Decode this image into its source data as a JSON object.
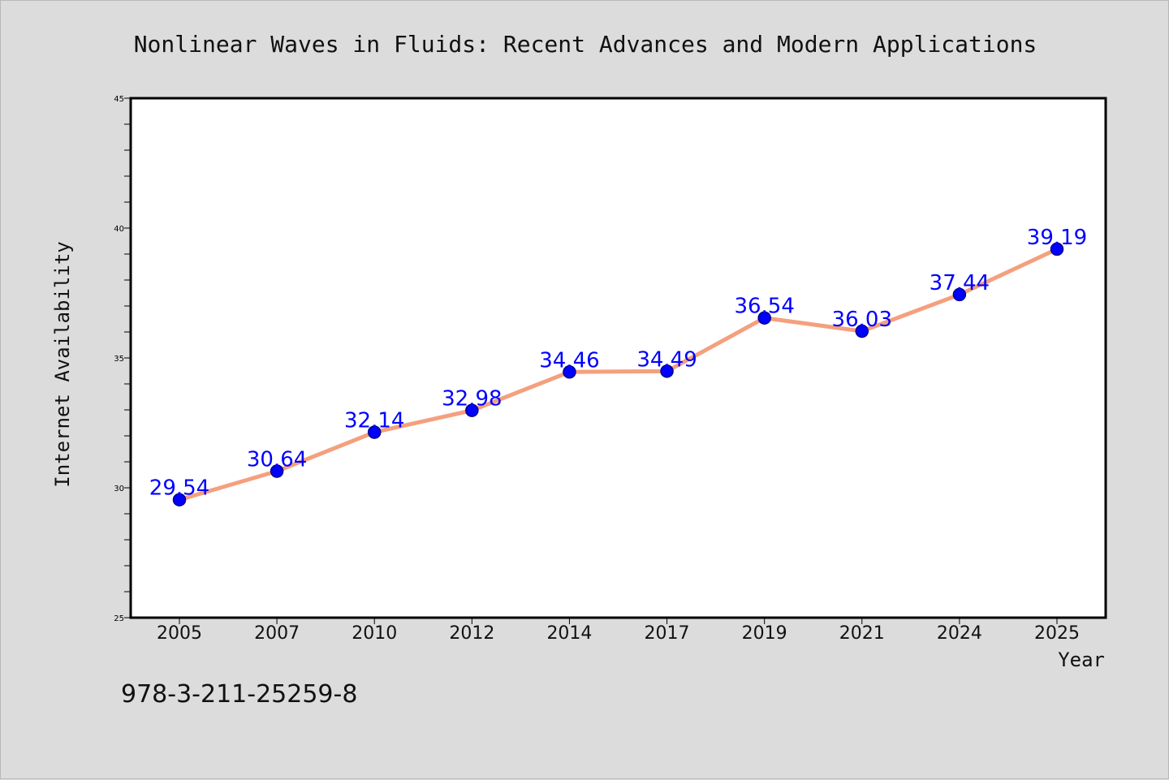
{
  "chart_data": {
    "type": "line",
    "title": "Nonlinear Waves in Fluids: Recent Advances and Modern Applications",
    "xlabel": "Year",
    "ylabel": "Internet Availability",
    "categories": [
      "2005",
      "2007",
      "2010",
      "2012",
      "2014",
      "2017",
      "2019",
      "2021",
      "2024",
      "2025"
    ],
    "series": [
      {
        "values": [
          29.54,
          30.64,
          32.14,
          32.98,
          34.46,
          34.49,
          36.54,
          36.03,
          37.44,
          39.19
        ],
        "labels": [
          "29.54",
          "30.64",
          "32.14",
          "32.98",
          "34.46",
          "34.49",
          "36.54",
          "36.03",
          "37.44",
          "39.19"
        ]
      }
    ],
    "ylim": [
      25,
      45
    ],
    "yticks": [
      "25",
      "30",
      "35",
      "40",
      "45"
    ],
    "y_minor_step": 1,
    "grid": false,
    "legend": "none",
    "colors": {
      "line": "#f4a07e",
      "marker": "#0000ff",
      "marker_edge": "#00008b",
      "label": "#0000ff",
      "background": "#dcdcdc",
      "plot_background": "#ffffff"
    }
  },
  "footer": {
    "isbn": "978-3-211-25259-8"
  }
}
